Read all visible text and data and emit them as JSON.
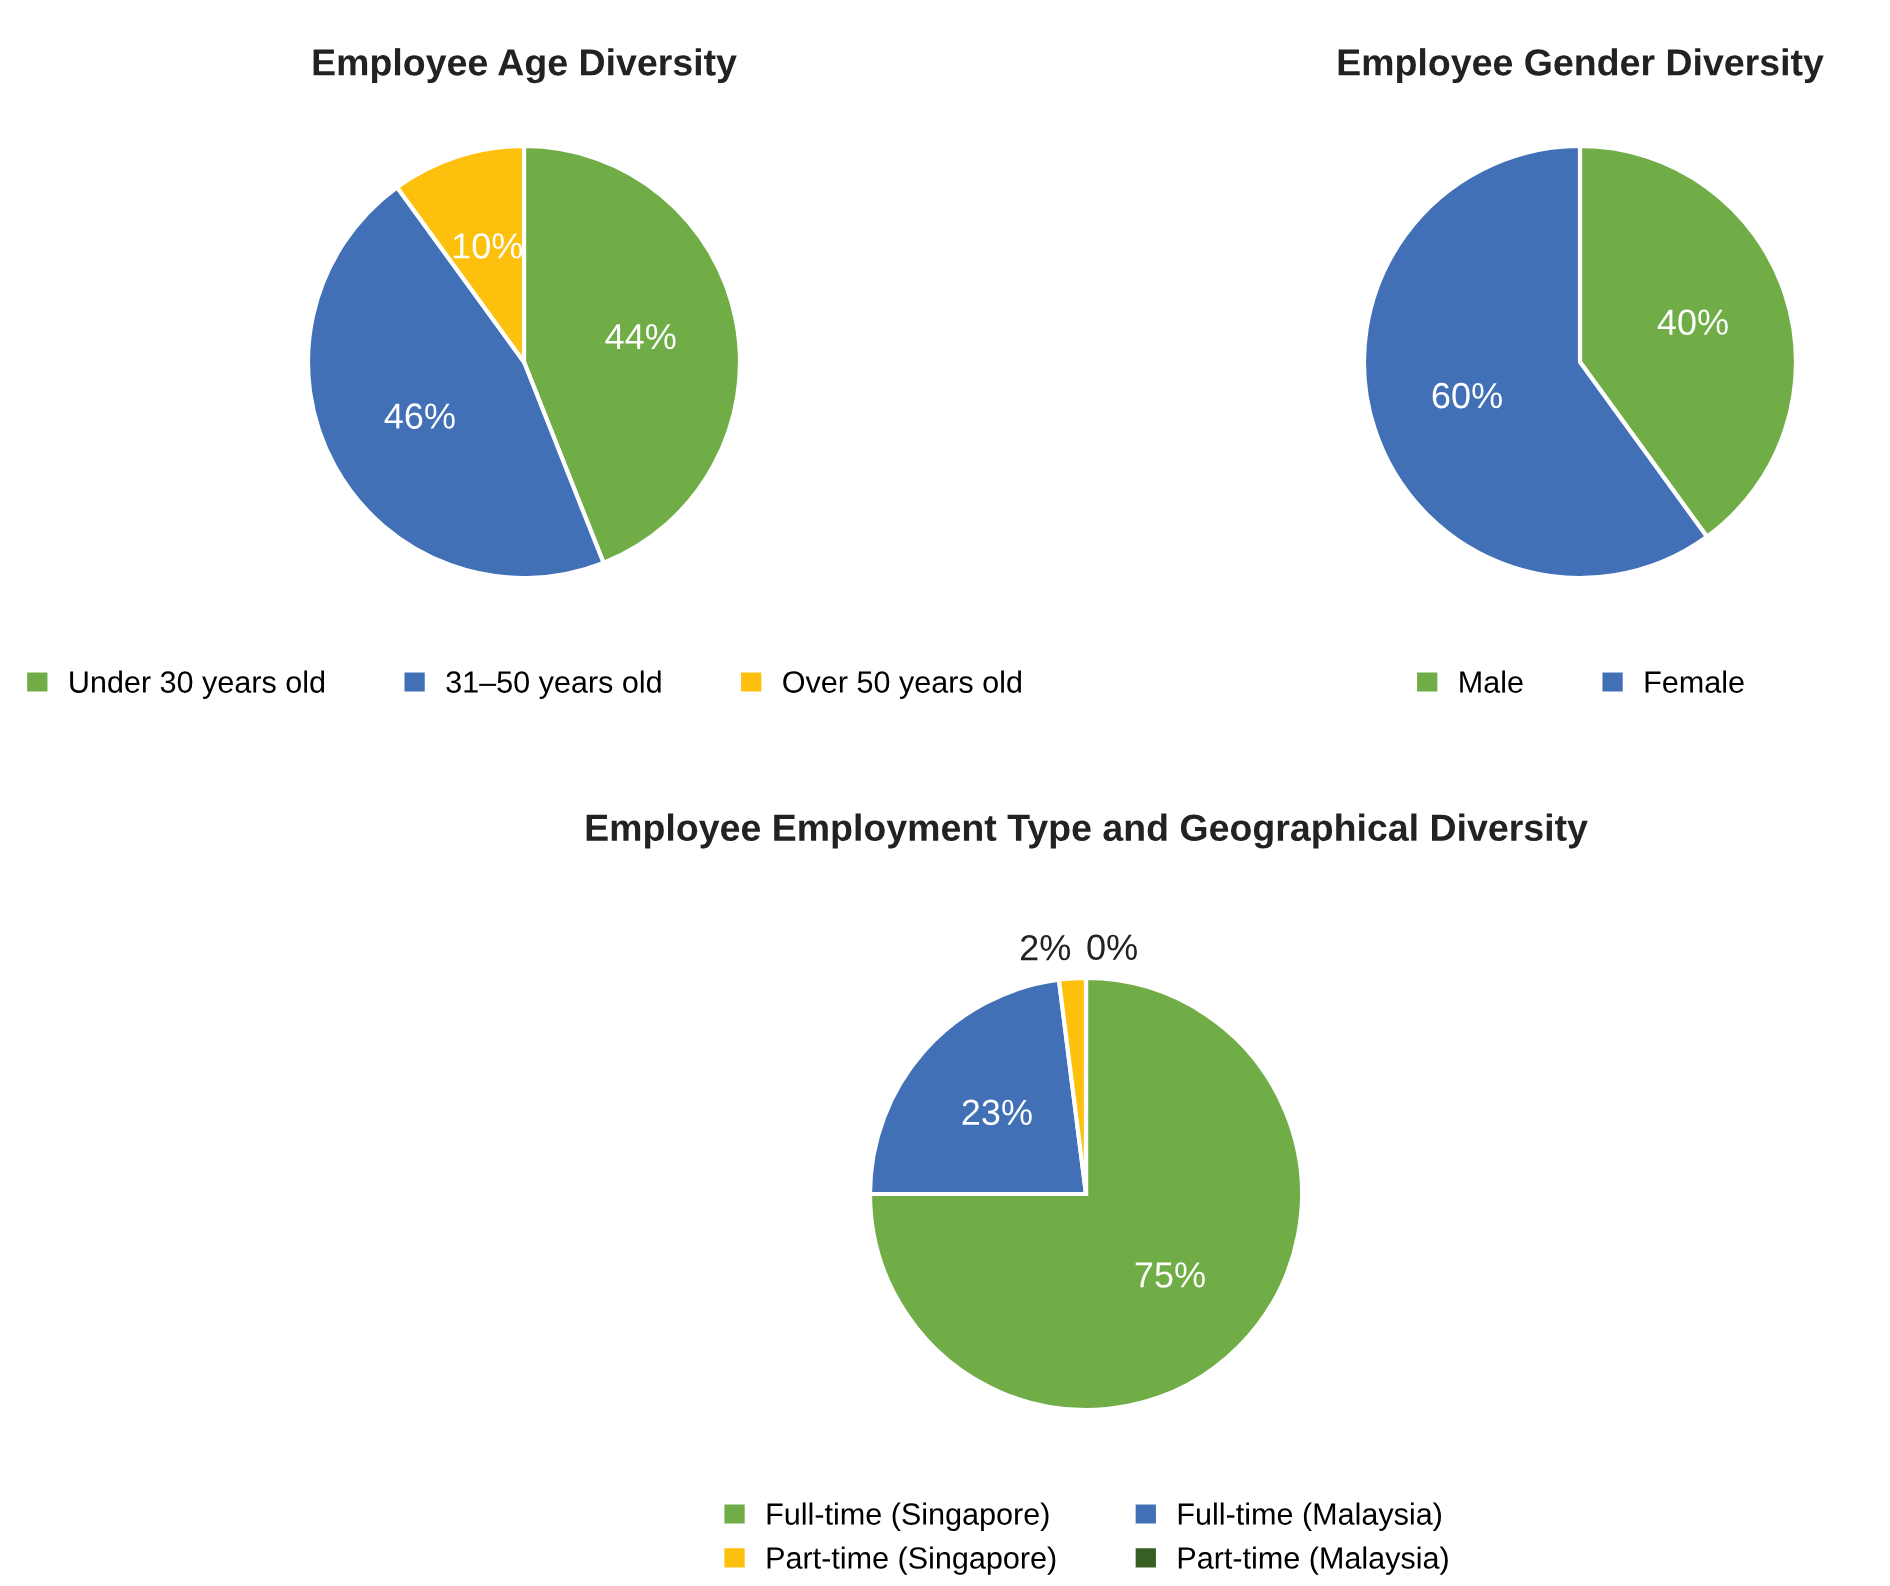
{
  "chart_data": [
    {
      "type": "pie",
      "title": "Employee Age Diversity",
      "categories": [
        "Under 30 years old",
        "31–50 years old",
        "Over 50 years old"
      ],
      "values": [
        44,
        46,
        10
      ],
      "value_labels": [
        "44%",
        "46%",
        "10%"
      ],
      "colors": [
        "#70ad47",
        "#4270b7",
        "#fcc00d"
      ],
      "legend": "bottom"
    },
    {
      "type": "pie",
      "title": "Employee Gender Diversity",
      "categories": [
        "Male",
        "Female"
      ],
      "values": [
        40,
        60
      ],
      "value_labels": [
        "40%",
        "60%"
      ],
      "colors": [
        "#70ad47",
        "#4270b7"
      ],
      "legend": "bottom"
    },
    {
      "type": "pie",
      "title": "Employee Employment Type and Geographical Diversity",
      "categories": [
        "Full-time (Singapore)",
        "Full-time (Malaysia)",
        "Part-time (Singapore)",
        "Part-time (Malaysia)"
      ],
      "values": [
        75,
        23,
        2,
        0
      ],
      "value_labels": [
        "75%",
        "23%",
        "2%",
        "0%"
      ],
      "colors": [
        "#70ad47",
        "#4270b7",
        "#fcc00d",
        "#375e23"
      ],
      "legend": "bottom"
    }
  ]
}
